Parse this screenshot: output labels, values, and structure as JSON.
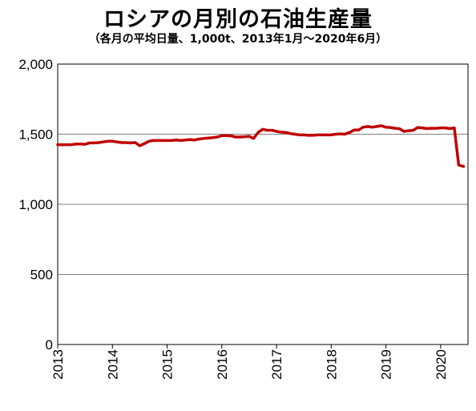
{
  "chart_data": {
    "type": "line",
    "title": "ロシアの月別の石油生産量",
    "subtitle": "（各月の平均日量、1,000t、2013年1月～2020年6月）",
    "xlabel": "",
    "ylabel": "",
    "ylim": [
      0,
      2000
    ],
    "yticks": [
      0,
      500,
      1000,
      1500,
      2000
    ],
    "ytick_labels": [
      "0",
      "500",
      "1,000",
      "1,500",
      "2,000"
    ],
    "xlim": [
      2013.0,
      2020.5
    ],
    "xticks": [
      2013,
      2014,
      2015,
      2016,
      2017,
      2018,
      2019,
      2020
    ],
    "xtick_labels": [
      "2013",
      "2014",
      "2015",
      "2016",
      "2017",
      "2018",
      "2019",
      "2020"
    ],
    "grid": "horizontal",
    "line_color": "#c00000",
    "series": [
      {
        "name": "",
        "x": [
          2013.0,
          2013.08,
          2013.17,
          2013.25,
          2013.33,
          2013.42,
          2013.5,
          2013.58,
          2013.67,
          2013.75,
          2013.83,
          2013.92,
          2014.0,
          2014.08,
          2014.17,
          2014.25,
          2014.33,
          2014.42,
          2014.5,
          2014.58,
          2014.67,
          2014.75,
          2014.83,
          2014.92,
          2015.0,
          2015.08,
          2015.17,
          2015.25,
          2015.33,
          2015.42,
          2015.5,
          2015.58,
          2015.67,
          2015.75,
          2015.83,
          2015.92,
          2016.0,
          2016.08,
          2016.17,
          2016.25,
          2016.33,
          2016.42,
          2016.5,
          2016.58,
          2016.67,
          2016.75,
          2016.83,
          2016.92,
          2017.0,
          2017.08,
          2017.17,
          2017.25,
          2017.33,
          2017.42,
          2017.5,
          2017.58,
          2017.67,
          2017.75,
          2017.83,
          2017.92,
          2018.0,
          2018.08,
          2018.17,
          2018.25,
          2018.33,
          2018.42,
          2018.5,
          2018.58,
          2018.67,
          2018.75,
          2018.83,
          2018.92,
          2019.0,
          2019.08,
          2019.17,
          2019.25,
          2019.33,
          2019.42,
          2019.5,
          2019.58,
          2019.67,
          2019.75,
          2019.83,
          2019.92,
          2020.0,
          2020.08,
          2020.17,
          2020.25,
          2020.33,
          2020.42
        ],
        "values": [
          1425,
          1425,
          1425,
          1425,
          1430,
          1430,
          1428,
          1438,
          1438,
          1440,
          1445,
          1450,
          1450,
          1445,
          1440,
          1440,
          1438,
          1440,
          1418,
          1432,
          1450,
          1455,
          1455,
          1455,
          1455,
          1455,
          1458,
          1455,
          1458,
          1462,
          1458,
          1465,
          1470,
          1472,
          1475,
          1480,
          1490,
          1490,
          1488,
          1480,
          1480,
          1482,
          1485,
          1470,
          1515,
          1535,
          1528,
          1528,
          1520,
          1515,
          1512,
          1505,
          1500,
          1495,
          1495,
          1492,
          1492,
          1495,
          1495,
          1495,
          1495,
          1500,
          1502,
          1500,
          1512,
          1530,
          1530,
          1550,
          1555,
          1550,
          1555,
          1560,
          1550,
          1548,
          1542,
          1538,
          1520,
          1525,
          1528,
          1548,
          1545,
          1540,
          1542,
          1542,
          1545,
          1545,
          1540,
          1545,
          1280,
          1270
        ]
      }
    ]
  }
}
